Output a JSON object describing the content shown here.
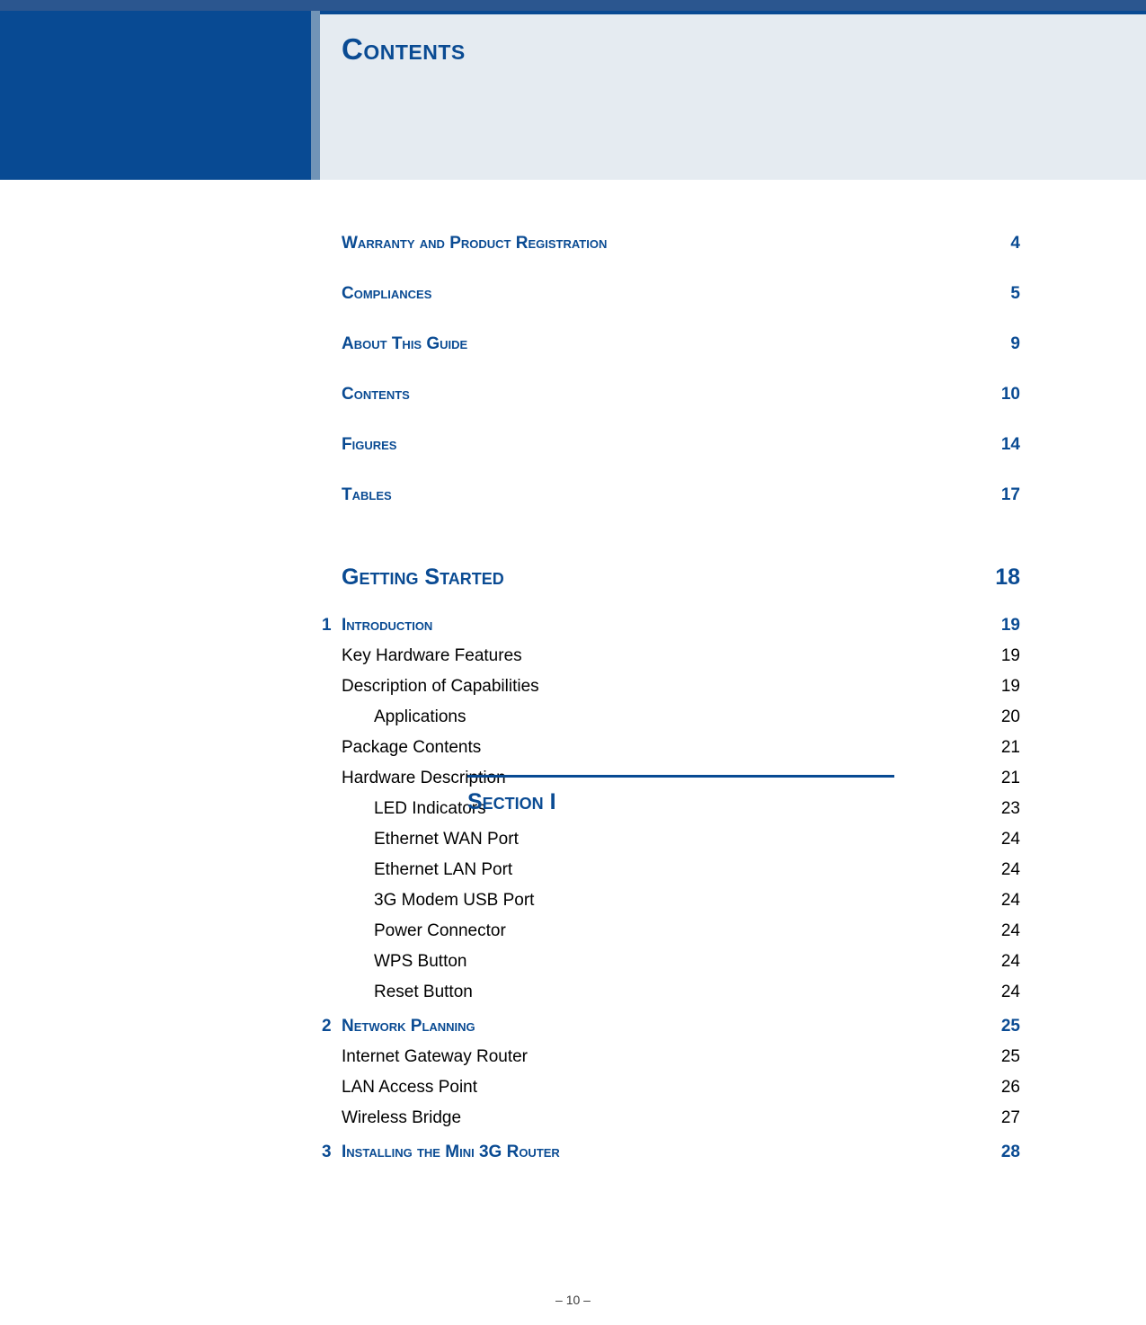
{
  "colors": {
    "brand_blue": "#0a4b93",
    "header_bg": "#e5ebf1",
    "square_border": "#7194b7",
    "top_bar": "#2b568f",
    "text": "#000000"
  },
  "typography": {
    "title_fontsize_pt": 25,
    "heading_fontsize_pt": 14,
    "body_fontsize_pt": 14
  },
  "page_title": "Contents",
  "front_matter": [
    {
      "label": "Warranty and Product Registration",
      "page": "4"
    },
    {
      "label": "Compliances",
      "page": "5"
    },
    {
      "label": "About This Guide",
      "page": "9"
    },
    {
      "label": "Contents",
      "page": "10"
    },
    {
      "label": "Figures",
      "page": "14"
    },
    {
      "label": "Tables",
      "page": "17"
    }
  ],
  "section": {
    "label": "Section I",
    "title": "Getting Started",
    "page": "18"
  },
  "chapters": [
    {
      "num": "1",
      "label": "Introduction",
      "page": "19",
      "entries": [
        {
          "level": 1,
          "label": "Key Hardware Features",
          "page": "19"
        },
        {
          "level": 1,
          "label": "Description of Capabilities",
          "page": "19"
        },
        {
          "level": 2,
          "label": "Applications",
          "page": "20"
        },
        {
          "level": 1,
          "label": "Package Contents",
          "page": "21"
        },
        {
          "level": 1,
          "label": "Hardware Description",
          "page": "21"
        },
        {
          "level": 2,
          "label": "LED Indicators",
          "page": "23"
        },
        {
          "level": 2,
          "label": "Ethernet WAN Port",
          "page": "24"
        },
        {
          "level": 2,
          "label": "Ethernet LAN Port",
          "page": "24"
        },
        {
          "level": 2,
          "label": "3G Modem USB Port",
          "page": "24"
        },
        {
          "level": 2,
          "label": "Power Connector",
          "page": "24"
        },
        {
          "level": 2,
          "label": "WPS Button",
          "page": "24"
        },
        {
          "level": 2,
          "label": "Reset Button",
          "page": "24"
        }
      ]
    },
    {
      "num": "2",
      "label": "Network Planning",
      "page": "25",
      "entries": [
        {
          "level": 1,
          "label": "Internet Gateway Router",
          "page": "25"
        },
        {
          "level": 1,
          "label": "LAN Access Point",
          "page": "26"
        },
        {
          "level": 1,
          "label": "Wireless Bridge",
          "page": "27"
        }
      ]
    },
    {
      "num": "3",
      "label": "Installing the Mini 3G Router",
      "page": "28",
      "entries": []
    }
  ],
  "footer": "–  10  –"
}
